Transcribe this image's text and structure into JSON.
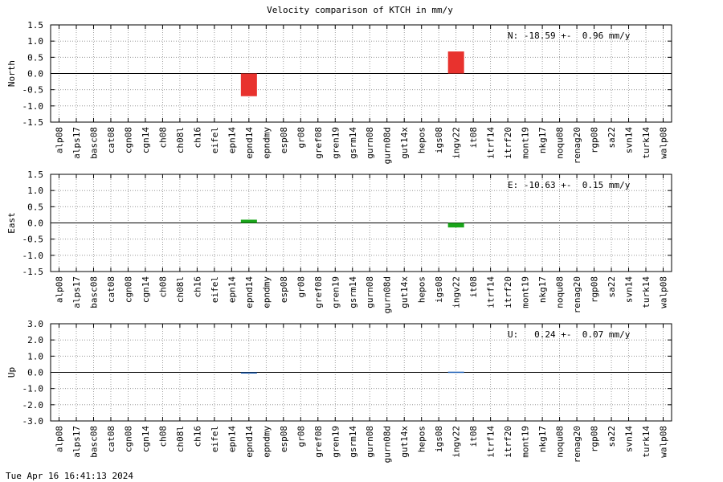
{
  "title": "Velocity comparison of KTCH in mm/y",
  "footer": "Tue Apr 16 16:41:13 2024",
  "chart_data": [
    {
      "type": "bar",
      "ylabel": "North",
      "annotation": "N: -18.59 +-  0.96 mm/y",
      "categories": [
        "alp08",
        "alps17",
        "basc08",
        "cat08",
        "cgn08",
        "cgn14",
        "ch08",
        "ch08l",
        "ch16",
        "eifel",
        "epn14",
        "epnd14",
        "epndmy",
        "esp08",
        "gr08",
        "gref08",
        "gren19",
        "gsrm14",
        "gurn08",
        "gurn08d",
        "gut14x",
        "hepos",
        "igs08",
        "ingv22",
        "it08",
        "itrf14",
        "itrf20",
        "mont19",
        "nkg17",
        "noqu08",
        "renag20",
        "rgp08",
        "sa22",
        "svn14",
        "turk14",
        "walp08"
      ],
      "values": [
        0,
        0,
        0,
        0,
        0,
        0,
        0,
        0,
        0,
        0,
        0,
        -0.7,
        0,
        0,
        0,
        0,
        0,
        0,
        0,
        0,
        0,
        0,
        0,
        0.68,
        0,
        0,
        0,
        0,
        0,
        0,
        0,
        0,
        0,
        0,
        0,
        0
      ],
      "ylim": [
        -1.5,
        1.5
      ],
      "yticks": [
        "-1.5",
        "-1.0",
        "-0.5",
        "0.0",
        "0.5",
        "1.0",
        "1.5"
      ],
      "color": "#e8322e",
      "grid": true
    },
    {
      "type": "bar",
      "ylabel": "East",
      "annotation": "E: -10.63 +-  0.15 mm/y",
      "categories": [
        "alp08",
        "alps17",
        "basc08",
        "cat08",
        "cgn08",
        "cgn14",
        "ch08",
        "ch08l",
        "ch16",
        "eifel",
        "epn14",
        "epnd14",
        "epndmy",
        "esp08",
        "gr08",
        "gref08",
        "gren19",
        "gsrm14",
        "gurn08",
        "gurn08d",
        "gut14x",
        "hepos",
        "igs08",
        "ingv22",
        "it08",
        "itrf14",
        "itrf20",
        "mont19",
        "nkg17",
        "noqu08",
        "renag20",
        "rgp08",
        "sa22",
        "svn14",
        "turk14",
        "walp08"
      ],
      "values": [
        0,
        0,
        0,
        0,
        0,
        0,
        0,
        0,
        0,
        0,
        0,
        0.1,
        0,
        0,
        0,
        0,
        0,
        0,
        0,
        0,
        0,
        0,
        0,
        -0.14,
        0,
        0,
        0,
        0,
        0,
        0,
        0,
        0,
        0,
        0,
        0,
        0
      ],
      "ylim": [
        -1.5,
        1.5
      ],
      "yticks": [
        "-1.5",
        "-1.0",
        "-0.5",
        "0.0",
        "0.5",
        "1.0",
        "1.5"
      ],
      "color": "#1aa51a",
      "grid": true
    },
    {
      "type": "bar",
      "ylabel": "Up",
      "annotation": "U:   0.24 +-  0.07 mm/y",
      "categories": [
        "alp08",
        "alps17",
        "basc08",
        "cat08",
        "cgn08",
        "cgn14",
        "ch08",
        "ch08l",
        "ch16",
        "eifel",
        "epn14",
        "epnd14",
        "epndmy",
        "esp08",
        "gr08",
        "gref08",
        "gren19",
        "gsrm14",
        "gurn08",
        "gurn08d",
        "gut14x",
        "hepos",
        "igs08",
        "ingv22",
        "it08",
        "itrf14",
        "itrf20",
        "mont19",
        "nkg17",
        "noqu08",
        "renag20",
        "rgp08",
        "sa22",
        "svn14",
        "turk14",
        "walp08"
      ],
      "values": [
        0,
        0,
        0,
        0,
        0,
        0,
        0,
        0,
        0,
        0,
        0,
        -0.05,
        0,
        0,
        0,
        0,
        0,
        0,
        0,
        0,
        0,
        0,
        0,
        0.04,
        0,
        0,
        0,
        0,
        0,
        0,
        0,
        0,
        0,
        0,
        0,
        0
      ],
      "ylim": [
        -3.0,
        3.0
      ],
      "yticks": [
        "-3.0",
        "-2.0",
        "-1.0",
        "0.0",
        "1.0",
        "2.0",
        "3.0"
      ],
      "color": "#1f5fb4",
      "grid": true
    }
  ]
}
